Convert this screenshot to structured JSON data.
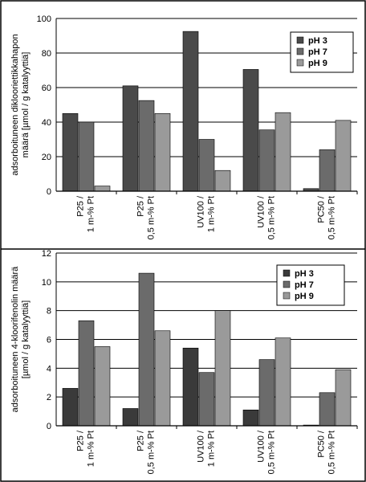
{
  "chart_data": [
    {
      "type": "bar",
      "title": "",
      "ylabel": "adsorboituneen diklooriettikkahapon\nmäärä [µmol / g katalyyttiä]",
      "xlabel": "",
      "ylim": [
        0,
        100
      ],
      "yticks": [
        0,
        20,
        40,
        60,
        80,
        100
      ],
      "grid": true,
      "legend": "top-right",
      "categories": [
        "P25 /\n1 m-% Pt",
        "P25 /\n0,5 m-% Pt",
        "UV100 /\n1 m-% Pt",
        "UV100 /\n0,5 m-% Pt",
        "PC50 /\n0,5 m-% Pt"
      ],
      "series": [
        {
          "name": "pH 3",
          "color": "#4a4a4a",
          "values": [
            45,
            61,
            92.5,
            70.5,
            1.5
          ]
        },
        {
          "name": "pH 7",
          "color": "#6b6b6b",
          "values": [
            40,
            52.5,
            30,
            35.5,
            24
          ]
        },
        {
          "name": "pH 9",
          "color": "#9a9a9a",
          "values": [
            3,
            45,
            12,
            45.5,
            41
          ]
        }
      ]
    },
    {
      "type": "bar",
      "title": "",
      "ylabel": "adsorboituneen 4-kloorifenolin määrä\n[µmol / g katalyyttiä]",
      "xlabel": "",
      "ylim": [
        0,
        12
      ],
      "yticks": [
        0,
        2,
        4,
        6,
        8,
        10,
        12
      ],
      "grid": true,
      "legend": "top-right",
      "categories": [
        "P25 /\n1 m-% Pt",
        "P25 /\n0,5 m-% Pt",
        "UV100 /\n1 m-% Pt",
        "UV100 /\n0,5 m-% Pt",
        "PC50 /\n0,5 m-% Pt"
      ],
      "series": [
        {
          "name": "pH 3",
          "color": "#3a3a3a",
          "values": [
            2.6,
            1.2,
            5.4,
            1.1,
            0.05
          ]
        },
        {
          "name": "pH 7",
          "color": "#6b6b6b",
          "values": [
            7.3,
            10.6,
            3.7,
            4.6,
            2.3
          ]
        },
        {
          "name": "pH 9",
          "color": "#9a9a9a",
          "values": [
            5.5,
            6.6,
            8.0,
            6.1,
            3.9
          ]
        }
      ]
    }
  ]
}
